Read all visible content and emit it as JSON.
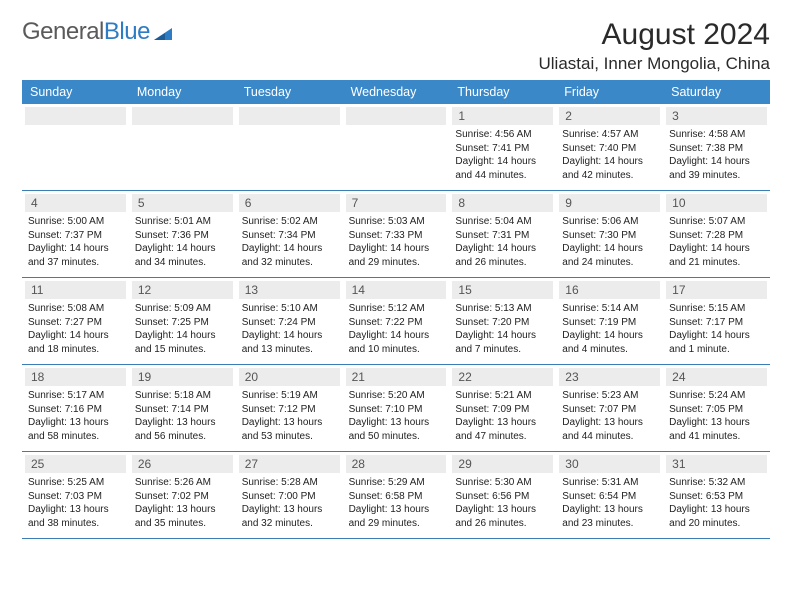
{
  "brand": {
    "name_gray": "General",
    "name_blue": "Blue"
  },
  "title": "August 2024",
  "location": "Uliastai, Inner Mongolia, China",
  "colors": {
    "header_bg": "#3b88c9",
    "header_text": "#ffffff",
    "day_number_bg": "#ececec",
    "day_number_text": "#555555",
    "row_border": "#3b7db5",
    "body_text": "#222222",
    "logo_gray": "#5a5a5a",
    "logo_blue": "#2e7cc4"
  },
  "day_names": [
    "Sunday",
    "Monday",
    "Tuesday",
    "Wednesday",
    "Thursday",
    "Friday",
    "Saturday"
  ],
  "weeks": [
    [
      {
        "n": "",
        "sunrise": "",
        "sunset": "",
        "daylight": ""
      },
      {
        "n": "",
        "sunrise": "",
        "sunset": "",
        "daylight": ""
      },
      {
        "n": "",
        "sunrise": "",
        "sunset": "",
        "daylight": ""
      },
      {
        "n": "",
        "sunrise": "",
        "sunset": "",
        "daylight": ""
      },
      {
        "n": "1",
        "sunrise": "Sunrise: 4:56 AM",
        "sunset": "Sunset: 7:41 PM",
        "daylight": "Daylight: 14 hours and 44 minutes."
      },
      {
        "n": "2",
        "sunrise": "Sunrise: 4:57 AM",
        "sunset": "Sunset: 7:40 PM",
        "daylight": "Daylight: 14 hours and 42 minutes."
      },
      {
        "n": "3",
        "sunrise": "Sunrise: 4:58 AM",
        "sunset": "Sunset: 7:38 PM",
        "daylight": "Daylight: 14 hours and 39 minutes."
      }
    ],
    [
      {
        "n": "4",
        "sunrise": "Sunrise: 5:00 AM",
        "sunset": "Sunset: 7:37 PM",
        "daylight": "Daylight: 14 hours and 37 minutes."
      },
      {
        "n": "5",
        "sunrise": "Sunrise: 5:01 AM",
        "sunset": "Sunset: 7:36 PM",
        "daylight": "Daylight: 14 hours and 34 minutes."
      },
      {
        "n": "6",
        "sunrise": "Sunrise: 5:02 AM",
        "sunset": "Sunset: 7:34 PM",
        "daylight": "Daylight: 14 hours and 32 minutes."
      },
      {
        "n": "7",
        "sunrise": "Sunrise: 5:03 AM",
        "sunset": "Sunset: 7:33 PM",
        "daylight": "Daylight: 14 hours and 29 minutes."
      },
      {
        "n": "8",
        "sunrise": "Sunrise: 5:04 AM",
        "sunset": "Sunset: 7:31 PM",
        "daylight": "Daylight: 14 hours and 26 minutes."
      },
      {
        "n": "9",
        "sunrise": "Sunrise: 5:06 AM",
        "sunset": "Sunset: 7:30 PM",
        "daylight": "Daylight: 14 hours and 24 minutes."
      },
      {
        "n": "10",
        "sunrise": "Sunrise: 5:07 AM",
        "sunset": "Sunset: 7:28 PM",
        "daylight": "Daylight: 14 hours and 21 minutes."
      }
    ],
    [
      {
        "n": "11",
        "sunrise": "Sunrise: 5:08 AM",
        "sunset": "Sunset: 7:27 PM",
        "daylight": "Daylight: 14 hours and 18 minutes."
      },
      {
        "n": "12",
        "sunrise": "Sunrise: 5:09 AM",
        "sunset": "Sunset: 7:25 PM",
        "daylight": "Daylight: 14 hours and 15 minutes."
      },
      {
        "n": "13",
        "sunrise": "Sunrise: 5:10 AM",
        "sunset": "Sunset: 7:24 PM",
        "daylight": "Daylight: 14 hours and 13 minutes."
      },
      {
        "n": "14",
        "sunrise": "Sunrise: 5:12 AM",
        "sunset": "Sunset: 7:22 PM",
        "daylight": "Daylight: 14 hours and 10 minutes."
      },
      {
        "n": "15",
        "sunrise": "Sunrise: 5:13 AM",
        "sunset": "Sunset: 7:20 PM",
        "daylight": "Daylight: 14 hours and 7 minutes."
      },
      {
        "n": "16",
        "sunrise": "Sunrise: 5:14 AM",
        "sunset": "Sunset: 7:19 PM",
        "daylight": "Daylight: 14 hours and 4 minutes."
      },
      {
        "n": "17",
        "sunrise": "Sunrise: 5:15 AM",
        "sunset": "Sunset: 7:17 PM",
        "daylight": "Daylight: 14 hours and 1 minute."
      }
    ],
    [
      {
        "n": "18",
        "sunrise": "Sunrise: 5:17 AM",
        "sunset": "Sunset: 7:16 PM",
        "daylight": "Daylight: 13 hours and 58 minutes."
      },
      {
        "n": "19",
        "sunrise": "Sunrise: 5:18 AM",
        "sunset": "Sunset: 7:14 PM",
        "daylight": "Daylight: 13 hours and 56 minutes."
      },
      {
        "n": "20",
        "sunrise": "Sunrise: 5:19 AM",
        "sunset": "Sunset: 7:12 PM",
        "daylight": "Daylight: 13 hours and 53 minutes."
      },
      {
        "n": "21",
        "sunrise": "Sunrise: 5:20 AM",
        "sunset": "Sunset: 7:10 PM",
        "daylight": "Daylight: 13 hours and 50 minutes."
      },
      {
        "n": "22",
        "sunrise": "Sunrise: 5:21 AM",
        "sunset": "Sunset: 7:09 PM",
        "daylight": "Daylight: 13 hours and 47 minutes."
      },
      {
        "n": "23",
        "sunrise": "Sunrise: 5:23 AM",
        "sunset": "Sunset: 7:07 PM",
        "daylight": "Daylight: 13 hours and 44 minutes."
      },
      {
        "n": "24",
        "sunrise": "Sunrise: 5:24 AM",
        "sunset": "Sunset: 7:05 PM",
        "daylight": "Daylight: 13 hours and 41 minutes."
      }
    ],
    [
      {
        "n": "25",
        "sunrise": "Sunrise: 5:25 AM",
        "sunset": "Sunset: 7:03 PM",
        "daylight": "Daylight: 13 hours and 38 minutes."
      },
      {
        "n": "26",
        "sunrise": "Sunrise: 5:26 AM",
        "sunset": "Sunset: 7:02 PM",
        "daylight": "Daylight: 13 hours and 35 minutes."
      },
      {
        "n": "27",
        "sunrise": "Sunrise: 5:28 AM",
        "sunset": "Sunset: 7:00 PM",
        "daylight": "Daylight: 13 hours and 32 minutes."
      },
      {
        "n": "28",
        "sunrise": "Sunrise: 5:29 AM",
        "sunset": "Sunset: 6:58 PM",
        "daylight": "Daylight: 13 hours and 29 minutes."
      },
      {
        "n": "29",
        "sunrise": "Sunrise: 5:30 AM",
        "sunset": "Sunset: 6:56 PM",
        "daylight": "Daylight: 13 hours and 26 minutes."
      },
      {
        "n": "30",
        "sunrise": "Sunrise: 5:31 AM",
        "sunset": "Sunset: 6:54 PM",
        "daylight": "Daylight: 13 hours and 23 minutes."
      },
      {
        "n": "31",
        "sunrise": "Sunrise: 5:32 AM",
        "sunset": "Sunset: 6:53 PM",
        "daylight": "Daylight: 13 hours and 20 minutes."
      }
    ]
  ]
}
